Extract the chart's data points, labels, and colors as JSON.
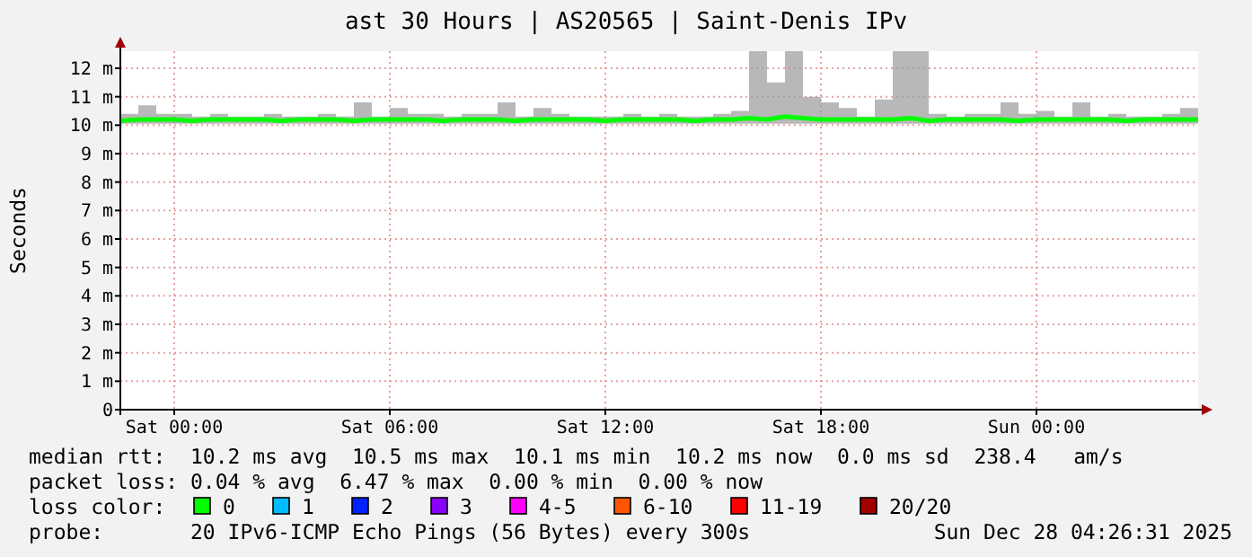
{
  "chart_data": {
    "type": "line",
    "title": "ast 30 Hours | AS20565 | Saint-Denis IPv",
    "ylabel": "Seconds",
    "x": [
      "2025-12-26T22:30",
      "2025-12-26T23:00",
      "2025-12-26T23:30",
      "2025-12-27T00:00",
      "2025-12-27T00:30",
      "2025-12-27T01:00",
      "2025-12-27T01:30",
      "2025-12-27T02:00",
      "2025-12-27T02:30",
      "2025-12-27T03:00",
      "2025-12-27T03:30",
      "2025-12-27T04:00",
      "2025-12-27T04:30",
      "2025-12-27T05:00",
      "2025-12-27T05:30",
      "2025-12-27T06:00",
      "2025-12-27T06:30",
      "2025-12-27T07:00",
      "2025-12-27T07:30",
      "2025-12-27T08:00",
      "2025-12-27T08:30",
      "2025-12-27T09:00",
      "2025-12-27T09:30",
      "2025-12-27T10:00",
      "2025-12-27T10:30",
      "2025-12-27T11:00",
      "2025-12-27T11:30",
      "2025-12-27T12:00",
      "2025-12-27T12:30",
      "2025-12-27T13:00",
      "2025-12-27T13:30",
      "2025-12-27T14:00",
      "2025-12-27T14:30",
      "2025-12-27T15:00",
      "2025-12-27T15:30",
      "2025-12-27T16:00",
      "2025-12-27T16:30",
      "2025-12-27T17:00",
      "2025-12-27T17:30",
      "2025-12-27T18:00",
      "2025-12-27T18:30",
      "2025-12-27T19:00",
      "2025-12-27T19:30",
      "2025-12-27T20:00",
      "2025-12-27T20:30",
      "2025-12-27T21:00",
      "2025-12-27T21:30",
      "2025-12-27T22:00",
      "2025-12-27T22:30",
      "2025-12-27T23:00",
      "2025-12-27T23:30",
      "2025-12-28T00:00",
      "2025-12-28T00:30",
      "2025-12-28T01:00",
      "2025-12-28T01:30",
      "2025-12-28T02:00",
      "2025-12-28T02:30",
      "2025-12-28T03:00",
      "2025-12-28T03:30",
      "2025-12-28T04:00",
      "2025-12-28T04:30"
    ],
    "series": [
      {
        "name": "0",
        "color": "#00ff00",
        "values": [
          10.15,
          10.2,
          10.2,
          10.2,
          10.15,
          10.2,
          10.2,
          10.2,
          10.2,
          10.15,
          10.2,
          10.2,
          10.2,
          10.15,
          10.2,
          10.2,
          10.2,
          10.2,
          10.15,
          10.2,
          10.2,
          10.2,
          10.15,
          10.2,
          10.2,
          10.2,
          10.2,
          10.15,
          10.2,
          10.2,
          10.2,
          10.2,
          10.15,
          10.2,
          10.2,
          10.25,
          10.2,
          10.3,
          10.25,
          10.2,
          10.2,
          10.2,
          10.2,
          10.2,
          10.25,
          10.15,
          10.2,
          10.2,
          10.2,
          10.2,
          10.15,
          10.2,
          10.2,
          10.2,
          10.2,
          10.2,
          10.15,
          10.2,
          10.2,
          10.2,
          10.2
        ],
        "lower": [
          10.05,
          10.05,
          10.05,
          10.05,
          10.05,
          10.05,
          10.05,
          10.05,
          10.05,
          10.05,
          10.05,
          10.05,
          10.05,
          10.05,
          10.05,
          10.05,
          10.05,
          10.05,
          10.05,
          10.05,
          10.05,
          10.05,
          10.05,
          10.05,
          10.05,
          10.05,
          10.05,
          10.05,
          10.05,
          10.05,
          10.05,
          10.05,
          10.05,
          10.05,
          10.05,
          10.05,
          10.05,
          10.05,
          10.05,
          10.05,
          10.05,
          10.05,
          10.05,
          10.05,
          10.05,
          10.05,
          10.05,
          10.05,
          10.05,
          10.05,
          10.05,
          10.05,
          10.05,
          10.05,
          10.05,
          10.05,
          10.05,
          10.05,
          10.05,
          10.05,
          10.05
        ],
        "upper": [
          10.4,
          10.7,
          10.4,
          10.4,
          10.3,
          10.4,
          10.3,
          10.3,
          10.4,
          10.3,
          10.3,
          10.4,
          10.3,
          10.8,
          10.3,
          10.6,
          10.4,
          10.4,
          10.3,
          10.4,
          10.4,
          10.8,
          10.3,
          10.6,
          10.4,
          10.3,
          10.3,
          10.3,
          10.4,
          10.3,
          10.4,
          10.3,
          10.3,
          10.4,
          10.5,
          12.6,
          11.5,
          12.6,
          11,
          10.8,
          10.6,
          10.3,
          10.9,
          12.6,
          12.6,
          10.4,
          10.3,
          10.4,
          10.4,
          10.8,
          10.4,
          10.5,
          10.3,
          10.8,
          10.3,
          10.4,
          10.3,
          10.3,
          10.4,
          10.6,
          10.4
        ]
      },
      {
        "name": "1",
        "color": "#00bbff",
        "values": [
          null,
          null,
          null,
          null,
          null,
          null,
          null,
          null,
          null,
          null,
          null,
          null,
          null,
          null,
          null,
          null,
          null,
          null,
          null,
          null,
          null,
          null,
          null,
          null,
          null,
          null,
          null,
          null,
          null,
          null,
          null,
          null,
          null,
          null,
          null,
          null,
          null,
          null,
          null,
          null,
          null,
          null,
          null,
          null,
          null,
          null,
          null,
          null,
          null,
          null,
          null,
          null,
          null,
          null,
          null,
          null,
          null,
          null,
          null,
          null,
          null
        ]
      },
      {
        "name": "2",
        "color": "#0022ff",
        "values": [
          null,
          null,
          null,
          null,
          null,
          null,
          null,
          null,
          null,
          null,
          null,
          null,
          null,
          null,
          null,
          null,
          null,
          null,
          null,
          null,
          null,
          null,
          null,
          null,
          null,
          null,
          null,
          null,
          null,
          null,
          null,
          null,
          null,
          null,
          null,
          null,
          null,
          null,
          null,
          null,
          null,
          null,
          null,
          null,
          null,
          null,
          null,
          null,
          null,
          null,
          null,
          null,
          null,
          null,
          null,
          null,
          null,
          null,
          null,
          null,
          null
        ]
      },
      {
        "name": "3",
        "color": "#8a00ff",
        "values": [
          null,
          null,
          null,
          null,
          null,
          null,
          null,
          null,
          null,
          null,
          null,
          null,
          null,
          null,
          null,
          null,
          null,
          null,
          null,
          null,
          null,
          null,
          null,
          null,
          null,
          null,
          null,
          null,
          null,
          null,
          null,
          null,
          null,
          null,
          null,
          null,
          null,
          null,
          null,
          null,
          null,
          null,
          null,
          null,
          null,
          null,
          null,
          null,
          null,
          null,
          null,
          null,
          null,
          null,
          null,
          null,
          null,
          null,
          null,
          null,
          null
        ]
      },
      {
        "name": "4-5",
        "color": "#ff00ff",
        "values": [
          null,
          null,
          null,
          null,
          null,
          null,
          null,
          null,
          null,
          null,
          null,
          null,
          null,
          null,
          null,
          null,
          null,
          null,
          null,
          null,
          null,
          null,
          null,
          null,
          null,
          null,
          null,
          null,
          null,
          null,
          null,
          null,
          null,
          null,
          null,
          null,
          null,
          null,
          null,
          null,
          null,
          null,
          null,
          null,
          null,
          null,
          null,
          null,
          null,
          null,
          null,
          null,
          null,
          null,
          null,
          null,
          null,
          null,
          null,
          null,
          null
        ]
      },
      {
        "name": "6-10",
        "color": "#ff5500",
        "values": [
          null,
          null,
          null,
          null,
          null,
          null,
          null,
          null,
          null,
          null,
          null,
          null,
          null,
          null,
          null,
          null,
          null,
          null,
          null,
          null,
          null,
          null,
          null,
          null,
          null,
          null,
          null,
          null,
          null,
          null,
          null,
          null,
          null,
          null,
          null,
          null,
          null,
          null,
          null,
          null,
          null,
          null,
          null,
          null,
          null,
          null,
          null,
          null,
          null,
          null,
          null,
          null,
          null,
          null,
          null,
          null,
          null,
          null,
          null,
          null,
          null
        ]
      },
      {
        "name": "11-19",
        "color": "#ff0000",
        "values": [
          null,
          null,
          null,
          null,
          null,
          null,
          null,
          null,
          null,
          null,
          null,
          null,
          null,
          null,
          null,
          null,
          null,
          null,
          null,
          null,
          null,
          null,
          null,
          null,
          null,
          null,
          null,
          null,
          null,
          null,
          null,
          null,
          null,
          null,
          null,
          null,
          null,
          null,
          null,
          null,
          null,
          null,
          null,
          null,
          null,
          null,
          null,
          null,
          null,
          null,
          null,
          null,
          null,
          null,
          null,
          null,
          null,
          null,
          null,
          null,
          null
        ]
      },
      {
        "name": "20/20",
        "color": "#a10000",
        "values": [
          null,
          null,
          null,
          null,
          null,
          null,
          null,
          null,
          null,
          null,
          null,
          null,
          null,
          null,
          null,
          null,
          null,
          null,
          null,
          null,
          null,
          null,
          null,
          null,
          null,
          null,
          null,
          null,
          null,
          null,
          null,
          null,
          null,
          null,
          null,
          null,
          null,
          null,
          null,
          null,
          null,
          null,
          null,
          null,
          null,
          null,
          null,
          null,
          null,
          null,
          null,
          null,
          null,
          null,
          null,
          null,
          null,
          null,
          null,
          null,
          null
        ]
      }
    ],
    "legend": "bottom",
    "legend_title": "loss color:",
    "xlim": [
      "2025-12-26T22:30",
      "2025-12-28T04:30"
    ],
    "xticks": [
      {
        "value": "2025-12-27T00:00",
        "label": "Sat 00:00"
      },
      {
        "value": "2025-12-27T06:00",
        "label": "Sat 06:00"
      },
      {
        "value": "2025-12-27T12:00",
        "label": "Sat 12:00"
      },
      {
        "value": "2025-12-27T18:00",
        "label": "Sat 18:00"
      },
      {
        "value": "2025-12-28T00:00",
        "label": "Sun 00:00"
      }
    ],
    "ylim": [
      0,
      12.6
    ],
    "yticks": [
      0,
      {
        "value": 1,
        "label": "1 m"
      },
      {
        "value": 2,
        "label": "2 m"
      },
      {
        "value": 3,
        "label": "3 m"
      },
      {
        "value": 4,
        "label": "4 m"
      },
      {
        "value": 5,
        "label": "5 m"
      },
      {
        "value": 6,
        "label": "6 m"
      },
      {
        "value": 7,
        "label": "7 m"
      },
      {
        "value": 8,
        "label": "8 m"
      },
      {
        "value": 9,
        "label": "9 m"
      },
      {
        "value": 10,
        "label": "10 m"
      },
      {
        "value": 11,
        "label": "11 m"
      },
      {
        "value": 12,
        "label": "12 m"
      }
    ],
    "grid": true,
    "line_style": "solid",
    "marker": "none",
    "annotations": [
      "median rtt:  10.2 ms avg  10.5 ms max  10.1 ms min  10.2 ms now  0.0 ms sd  238.4   am/s",
      "packet loss: 0.04 % avg  6.47 % max  0.00 % min  0.00 % now",
      "probe:       20 IPv6-ICMP Echo Pings (56 Bytes) every 300s",
      "Sun Dec 28 04:26:31 2025"
    ]
  }
}
